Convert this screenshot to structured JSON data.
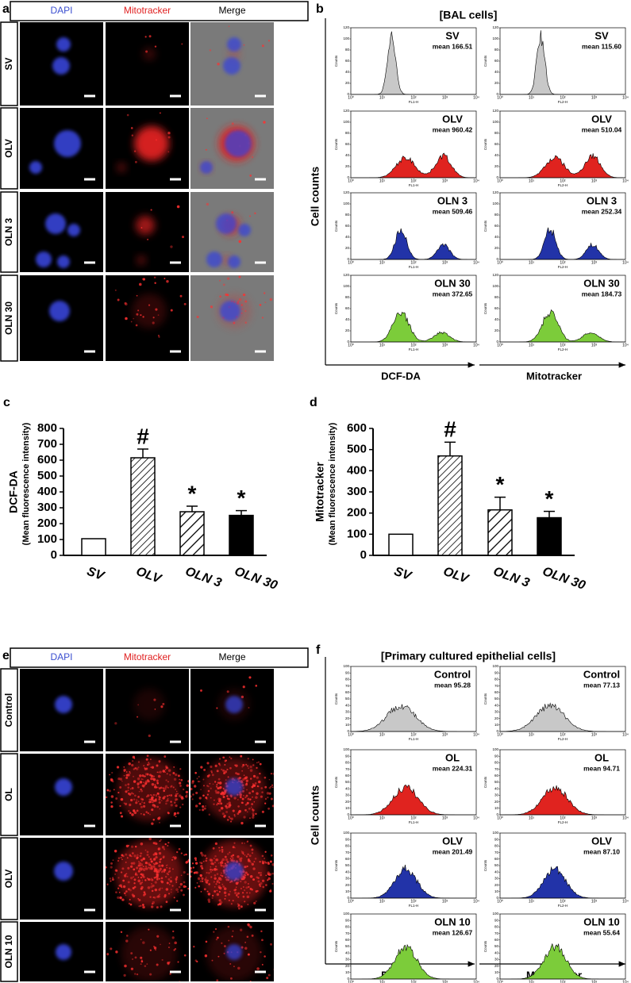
{
  "panel_a": {
    "letter": "a",
    "columns": [
      "DAPI",
      "Mitotracker",
      "Merge"
    ],
    "rows": [
      "SV",
      "OLV",
      "OLN 3",
      "OLN 30"
    ]
  },
  "panel_b": {
    "letter": "b",
    "title": "[BAL cells]",
    "y_label": "Cell counts",
    "x_labels": [
      "DCF-DA",
      "Mitotracker"
    ],
    "channels": [
      "FL1-H",
      "FL2-H"
    ],
    "counts_label": "Counts",
    "count_ticks": [
      0,
      20,
      40,
      60,
      80,
      100,
      120
    ],
    "decade_ticks": [
      "10⁰",
      "10¹",
      "10²",
      "10³",
      "10⁴"
    ],
    "rows": [
      {
        "label": "SV",
        "color": "#c8c8c8",
        "means": [
          "mean 166.51",
          "mean 115.60"
        ]
      },
      {
        "label": "OLV",
        "color": "#e0231f",
        "means": [
          "mean 960.42",
          "mean 510.04"
        ]
      },
      {
        "label": "OLN 3",
        "color": "#2233a8",
        "means": [
          "mean 509.46",
          "mean 252.34"
        ]
      },
      {
        "label": "OLN 30",
        "color": "#7ccc3a",
        "means": [
          "mean 372.65",
          "mean 184.73"
        ]
      }
    ]
  },
  "chart_data": [
    {
      "type": "bar",
      "letter": "c",
      "ylabel": "DCF-DA",
      "ylabel_sub": "(Mean fluorescence intensity)",
      "categories": [
        "SV",
        "OLV",
        "OLN 3",
        "OLN 30"
      ],
      "values": [
        105,
        615,
        275,
        252
      ],
      "errors": [
        null,
        55,
        35,
        30
      ],
      "markers": [
        null,
        "#",
        "*",
        "*"
      ],
      "styles": [
        "white",
        "hatch",
        "hatch-wide",
        "black"
      ],
      "ylim": [
        0,
        800
      ],
      "yticks": [
        0,
        100,
        200,
        300,
        400,
        500,
        600,
        700,
        800
      ]
    },
    {
      "type": "bar",
      "letter": "d",
      "ylabel": "Mitotracker",
      "ylabel_sub": "(Mean fluorescence intensity)",
      "categories": [
        "SV",
        "OLV",
        "OLN 3",
        "OLN 30"
      ],
      "values": [
        100,
        470,
        215,
        178
      ],
      "errors": [
        null,
        65,
        60,
        30
      ],
      "markers": [
        null,
        "#",
        "*",
        "*"
      ],
      "styles": [
        "white",
        "hatch",
        "hatch-wide",
        "black"
      ],
      "ylim": [
        0,
        600
      ],
      "yticks": [
        0,
        100,
        200,
        300,
        400,
        500,
        600
      ]
    }
  ],
  "panel_e": {
    "letter": "e",
    "columns": [
      "DAPI",
      "Mitotracker",
      "Merge"
    ],
    "rows": [
      "Control",
      "OL",
      "OLV",
      "OLN 10"
    ]
  },
  "panel_f": {
    "letter": "f",
    "title": "[Primary cultured epithelial cells]",
    "y_label": "Cell counts",
    "x_labels": [
      "DCF-DA",
      "Mitotracker"
    ],
    "channels": [
      "FL1-H",
      "FL2-H"
    ],
    "counts_label": "Counts",
    "count_ticks": [
      0,
      10,
      20,
      30,
      40,
      50,
      60,
      70,
      80,
      90,
      100
    ],
    "decade_ticks": [
      "10⁰",
      "10¹",
      "10²",
      "10³",
      "10⁴"
    ],
    "rows": [
      {
        "label": "Control",
        "color": "#c8c8c8",
        "means": [
          "mean 95.28",
          "mean 77.13"
        ]
      },
      {
        "label": "OL",
        "color": "#e0231f",
        "means": [
          "mean 224.31",
          "mean 94.71"
        ]
      },
      {
        "label": "OLV",
        "color": "#2233a8",
        "means": [
          "mean 201.49",
          "mean 87.10"
        ]
      },
      {
        "label": "OLN 10",
        "color": "#7ccc3a",
        "means": [
          "mean 126.67",
          "mean 55.64"
        ]
      }
    ]
  }
}
